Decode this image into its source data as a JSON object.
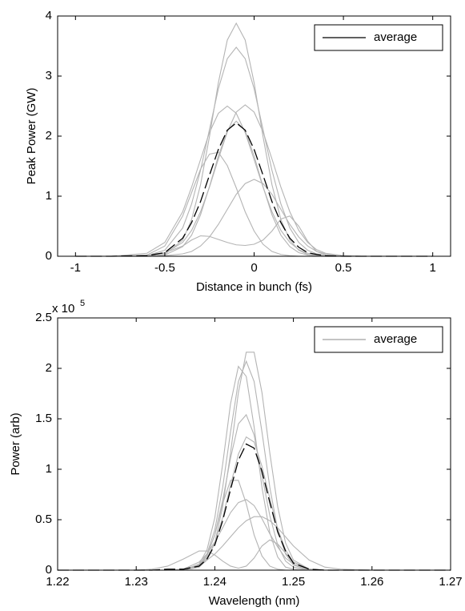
{
  "chart_data": [
    {
      "type": "line",
      "xlabel": "Distance in bunch (fs)",
      "ylabel": "Peak Power (GW)",
      "x": [
        -1,
        -0.8,
        -0.6,
        -0.5,
        -0.4,
        -0.35,
        -0.3,
        -0.25,
        -0.2,
        -0.15,
        -0.1,
        -0.05,
        0,
        0.05,
        0.1,
        0.15,
        0.2,
        0.25,
        0.3,
        0.35,
        0.4,
        0.5,
        0.6,
        0.8,
        1
      ],
      "xlim": [
        -1.1,
        1.1
      ],
      "xticks": [
        -1,
        -0.5,
        0,
        0.5,
        1
      ],
      "ylim": [
        0,
        4
      ],
      "yticks": [
        0,
        1,
        2,
        3,
        4
      ],
      "legend": "upper right",
      "legend_line_color": "#000000",
      "series": [
        {
          "color": "#b4b4b4",
          "values": [
            0,
            0,
            0,
            0.03,
            0.27,
            0.61,
            1.19,
            1.99,
            2.89,
            3.6,
            3.88,
            3.6,
            2.89,
            1.99,
            1.19,
            0.61,
            0.27,
            0.1,
            0.03,
            0.01,
            0,
            0,
            0,
            0,
            0
          ]
        },
        {
          "color": "#b4b4b4",
          "values": [
            0,
            0,
            0.01,
            0.1,
            0.47,
            0.87,
            1.43,
            2.11,
            2.79,
            3.29,
            3.48,
            3.29,
            2.79,
            2.11,
            1.43,
            0.87,
            0.47,
            0.23,
            0.1,
            0.04,
            0.01,
            0,
            0,
            0,
            0
          ]
        },
        {
          "color": "#b4b4b4",
          "values": [
            0,
            0,
            0.05,
            0.23,
            0.74,
            1.15,
            1.61,
            2.06,
            2.38,
            2.5,
            2.38,
            2.06,
            1.61,
            1.15,
            0.74,
            0.43,
            0.23,
            0.11,
            0.05,
            0.02,
            0.01,
            0,
            0,
            0,
            0
          ]
        },
        {
          "color": "#b4b4b4",
          "values": [
            0,
            0,
            0.01,
            0.05,
            0.23,
            0.43,
            0.74,
            1.15,
            1.62,
            2.07,
            2.4,
            2.52,
            2.4,
            2.07,
            1.62,
            1.15,
            0.74,
            0.43,
            0.23,
            0.11,
            0.05,
            0.01,
            0,
            0,
            0
          ]
        },
        {
          "color": "#b4b4b4",
          "values": [
            0,
            0,
            0,
            0.02,
            0.16,
            0.35,
            0.69,
            1.16,
            1.67,
            2.09,
            2.25,
            2.09,
            1.67,
            1.16,
            0.69,
            0.35,
            0.16,
            0.06,
            0.02,
            0.01,
            0,
            0,
            0,
            0,
            0
          ]
        },
        {
          "color": "#b4b4b4",
          "values": [
            0,
            0,
            0.02,
            0.17,
            0.67,
            1.06,
            1.45,
            1.7,
            1.73,
            1.51,
            1.14,
            0.74,
            0.42,
            0.2,
            0.08,
            0.03,
            0.01,
            0,
            0,
            0,
            0,
            0,
            0,
            0,
            0
          ]
        },
        {
          "color": "#b4b4b4",
          "values": [
            0,
            0,
            0,
            0.01,
            0.04,
            0.08,
            0.17,
            0.32,
            0.53,
            0.78,
            1.03,
            1.21,
            1.28,
            1.21,
            1.03,
            0.78,
            0.53,
            0.32,
            0.17,
            0.08,
            0.04,
            0.01,
            0,
            0,
            0
          ]
        },
        {
          "color": "#b4b4b4",
          "values": [
            0,
            0,
            0.02,
            0.06,
            0.17,
            0.27,
            0.34,
            0.33,
            0.28,
            0.23,
            0.19,
            0.18,
            0.2,
            0.27,
            0.42,
            0.62,
            0.67,
            0.5,
            0.25,
            0.08,
            0.02,
            0,
            0,
            0,
            0
          ]
        },
        {
          "name": "average",
          "color": "#000000",
          "dash": true,
          "values": [
            0,
            0,
            0.01,
            0.06,
            0.3,
            0.56,
            0.91,
            1.35,
            1.78,
            2.1,
            2.22,
            2.1,
            1.78,
            1.35,
            0.91,
            0.56,
            0.3,
            0.15,
            0.06,
            0.03,
            0.01,
            0,
            0,
            0,
            0
          ]
        }
      ]
    },
    {
      "type": "line",
      "xlabel": "Wavelength (nm)",
      "ylabel": "Power (arb)",
      "y_scale_label": "x 10",
      "y_scale_exponent": "5",
      "x": [
        1.22,
        1.23,
        1.232,
        1.234,
        1.236,
        1.238,
        1.239,
        1.24,
        1.241,
        1.242,
        1.243,
        1.244,
        1.245,
        1.246,
        1.247,
        1.248,
        1.249,
        1.25,
        1.252,
        1.254,
        1.256,
        1.26,
        1.27
      ],
      "xlim": [
        1.22,
        1.27
      ],
      "xticks": [
        1.22,
        1.23,
        1.24,
        1.25,
        1.26,
        1.27
      ],
      "ylim": [
        0,
        2.5
      ],
      "yticks": [
        0,
        0.5,
        1,
        1.5,
        2,
        2.5
      ],
      "legend": "upper right",
      "legend_line_color": "#a0a0a0",
      "series": [
        {
          "color": "#b4b4b4",
          "values": [
            0,
            0,
            0,
            0,
            0,
            0.03,
            0.1,
            0.27,
            0.63,
            1.16,
            1.76,
            2.16,
            2.16,
            1.76,
            1.16,
            0.63,
            0.27,
            0.1,
            0.01,
            0,
            0,
            0,
            0
          ]
        },
        {
          "color": "#b4b4b4",
          "values": [
            0,
            0,
            0,
            0,
            0,
            0.05,
            0.16,
            0.4,
            0.82,
            1.37,
            1.87,
            2.07,
            1.87,
            1.37,
            0.82,
            0.4,
            0.16,
            0.05,
            0,
            0,
            0,
            0,
            0
          ]
        },
        {
          "color": "#b4b4b4",
          "values": [
            0,
            0,
            0,
            0,
            0,
            0.06,
            0.2,
            0.52,
            1.05,
            1.65,
            2.02,
            1.92,
            1.42,
            0.82,
            0.37,
            0.13,
            0.03,
            0.01,
            0,
            0,
            0,
            0,
            0
          ]
        },
        {
          "color": "#b4b4b4",
          "values": [
            0,
            0,
            0,
            0,
            0,
            0.05,
            0.14,
            0.35,
            0.69,
            1.11,
            1.45,
            1.54,
            1.34,
            0.94,
            0.54,
            0.25,
            0.09,
            0.03,
            0,
            0,
            0,
            0,
            0
          ]
        },
        {
          "color": "#b4b4b4",
          "values": [
            0,
            0,
            0,
            0,
            0,
            0.04,
            0.12,
            0.27,
            0.52,
            0.84,
            1.15,
            1.32,
            1.27,
            1.03,
            0.71,
            0.41,
            0.2,
            0.08,
            0.01,
            0,
            0,
            0,
            0
          ]
        },
        {
          "color": "#b4b4b4",
          "values": [
            0,
            0,
            0,
            0,
            0,
            0.04,
            0.14,
            0.35,
            0.66,
            0.89,
            0.89,
            0.66,
            0.35,
            0.14,
            0.04,
            0.01,
            0,
            0,
            0,
            0,
            0,
            0,
            0
          ]
        },
        {
          "color": "#b4b4b4",
          "values": [
            0,
            0,
            0,
            0,
            0.01,
            0.08,
            0.16,
            0.28,
            0.42,
            0.57,
            0.67,
            0.7,
            0.64,
            0.51,
            0.36,
            0.23,
            0.12,
            0.06,
            0.01,
            0,
            0,
            0,
            0
          ]
        },
        {
          "color": "#b4b4b4",
          "values": [
            0,
            0,
            0,
            0,
            0.01,
            0.05,
            0.1,
            0.16,
            0.24,
            0.33,
            0.42,
            0.49,
            0.53,
            0.53,
            0.49,
            0.42,
            0.33,
            0.24,
            0.1,
            0.03,
            0.01,
            0,
            0
          ]
        },
        {
          "color": "#b4b4b4",
          "values": [
            0,
            0,
            0.01,
            0.04,
            0.11,
            0.19,
            0.19,
            0.15,
            0.09,
            0.04,
            0.02,
            0.04,
            0.12,
            0.24,
            0.3,
            0.26,
            0.17,
            0.08,
            0.01,
            0,
            0,
            0,
            0
          ]
        },
        {
          "name": "average",
          "color": "#000000",
          "dash": true,
          "values": [
            0,
            0,
            0,
            0.01,
            0.01,
            0.04,
            0.11,
            0.25,
            0.49,
            0.8,
            1.09,
            1.25,
            1.21,
            0.98,
            0.67,
            0.38,
            0.19,
            0.07,
            0.01,
            0,
            0,
            0,
            0
          ]
        }
      ]
    }
  ]
}
